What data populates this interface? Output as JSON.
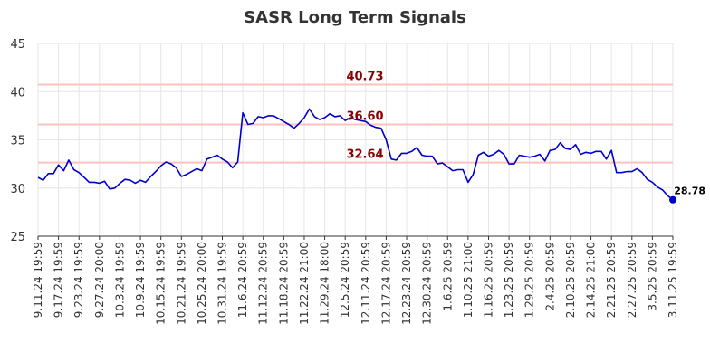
{
  "chart_data": {
    "type": "line",
    "title": "SASR Long Term Signals",
    "xlabel": "",
    "ylabel": "",
    "ylim": [
      25,
      45
    ],
    "y_ticks": [
      25,
      30,
      35,
      40,
      45
    ],
    "grid": true,
    "x_tick_labels": [
      "9.11.24 19:59",
      "9.17.24 19:59",
      "9.23.24 19:59",
      "9.27.24 20:00",
      "10.3.24 19:59",
      "10.9.24 19:59",
      "10.15.24 19:59",
      "10.21.24 19:59",
      "10.25.24 20:00",
      "10.31.24 19:59",
      "11.6.24 20:59",
      "11.12.24 20:59",
      "11.18.24 20:59",
      "11.22.24 21:00",
      "11.29.24 18:00",
      "12.5.24 20:59",
      "12.11.24 20:59",
      "12.17.24 20:59",
      "12.23.24 20:59",
      "12.30.24 20:59",
      "1.6.25 20:59",
      "1.10.25 21:00",
      "1.16.25 20:59",
      "1.23.25 20:59",
      "1.29.25 20:59",
      "2.4.25 20:59",
      "2.10.25 20:59",
      "2.14.25 21:00",
      "2.21.25 20:59",
      "2.27.25 20:59",
      "3.5.25 20:59",
      "3.11.25 19:59"
    ],
    "series": [
      {
        "color": "#0000cc",
        "values": [
          31.1,
          30.8,
          31.5,
          31.5,
          32.4,
          31.8,
          32.9,
          31.9,
          31.6,
          31.1,
          30.6,
          30.6,
          30.5,
          30.7,
          29.9,
          30.0,
          30.5,
          30.9,
          30.8,
          30.5,
          30.8,
          30.6,
          31.2,
          31.7,
          32.3,
          32.7,
          32.5,
          32.1,
          31.2,
          31.4,
          31.7,
          32.0,
          31.8,
          33.0,
          33.2,
          33.4,
          33.0,
          32.7,
          32.1,
          32.7,
          37.8,
          36.6,
          36.7,
          37.4,
          37.3,
          37.5,
          37.5,
          37.2,
          36.9,
          36.6,
          36.2,
          36.7,
          37.3,
          38.2,
          37.4,
          37.1,
          37.3,
          37.7,
          37.4,
          37.5,
          37.0,
          37.3,
          37.1,
          37.0,
          36.9,
          36.5,
          36.3,
          36.2,
          35.0,
          33.0,
          32.9,
          33.6,
          33.6,
          33.8,
          34.2,
          33.4,
          33.3,
          33.3,
          32.5,
          32.6,
          32.2,
          31.8,
          31.9,
          31.9,
          30.6,
          31.4,
          33.4,
          33.7,
          33.3,
          33.5,
          33.9,
          33.5,
          32.5,
          32.5,
          33.4,
          33.3,
          33.2,
          33.3,
          33.5,
          32.8,
          33.9,
          34.0,
          34.7,
          34.1,
          34.0,
          34.5,
          33.5,
          33.7,
          33.6,
          33.8,
          33.8,
          33.0,
          33.9,
          31.6,
          31.6,
          31.7,
          31.7,
          32.0,
          31.6,
          30.9,
          30.6,
          30.1,
          29.8,
          29.2,
          28.78
        ]
      }
    ],
    "last_value_label": "28.78",
    "annotations": [
      {
        "label": "40.73",
        "value": 40.73,
        "color": "#8b0000",
        "line_color": "#ffc0c0"
      },
      {
        "label": "36.60",
        "value": 36.6,
        "color": "#8b0000",
        "line_color": "#ffc0c0"
      },
      {
        "label": "32.64",
        "value": 32.64,
        "color": "#8b0000",
        "line_color": "#ffc0c0"
      }
    ]
  }
}
